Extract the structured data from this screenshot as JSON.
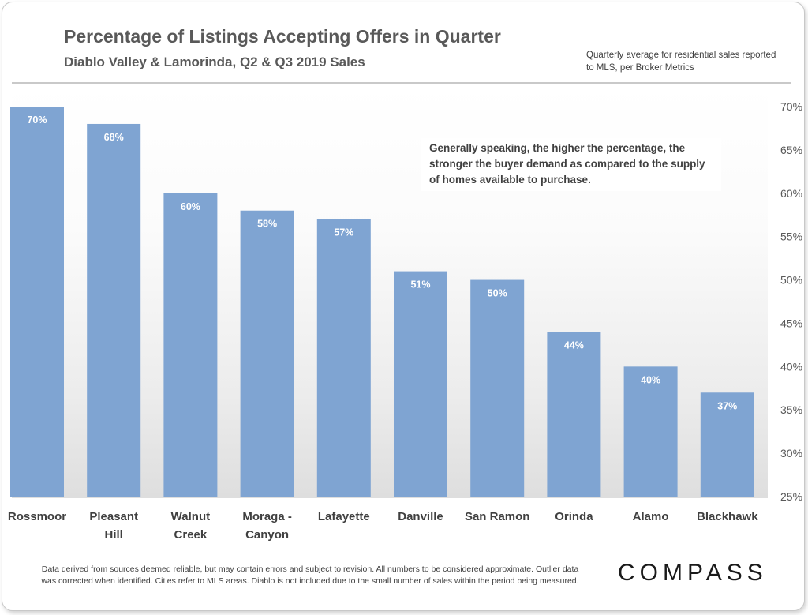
{
  "header": {
    "title": "Percentage of Listings Accepting Offers in Quarter",
    "subtitle": "Diablo Valley & Lamorinda,  Q2 & Q3 2019 Sales",
    "source_note": "Quarterly average for residential  sales reported to MLS, per Broker Metrics"
  },
  "annotation": "Generally speaking, the higher the percentage, the stronger the buyer demand as compared to the supply of homes available to purchase.",
  "footer": {
    "disclaimer": "Data derived from sources deemed reliable, but may contain errors and subject to revision. All numbers to be considered approximate. Outlier data was corrected when identified. Cities refer to MLS areas. Diablo is not included due to the small number of sales within the period being measured.",
    "logo": "COMPASS"
  },
  "colors": {
    "bar": "#7fa4d2",
    "bar_label": "#ffffff",
    "axis_text": "#595959",
    "category_text": "#404040"
  },
  "chart_data": {
    "type": "bar",
    "title": "Percentage of Listings Accepting Offers in Quarter",
    "subtitle": "Diablo Valley & Lamorinda,  Q2 & Q3 2019 Sales",
    "xlabel": "",
    "ylabel": "",
    "y_axis_side": "right",
    "grid": false,
    "categories": [
      [
        "Rossmoor"
      ],
      [
        "Pleasant",
        "Hill"
      ],
      [
        "Walnut",
        "Creek"
      ],
      [
        "Moraga -",
        "Canyon"
      ],
      [
        "Lafayette"
      ],
      [
        "Danville"
      ],
      [
        "San Ramon"
      ],
      [
        "Orinda"
      ],
      [
        "Alamo"
      ],
      [
        "Blackhawk"
      ]
    ],
    "values": [
      70,
      68,
      60,
      58,
      57,
      51,
      50,
      44,
      40,
      37
    ],
    "data_labels": [
      "70%",
      "68%",
      "60%",
      "58%",
      "57%",
      "51%",
      "50%",
      "44%",
      "40%",
      "37%"
    ],
    "ylim": [
      25,
      70
    ],
    "yticks": [
      25,
      30,
      35,
      40,
      45,
      50,
      55,
      60,
      65,
      70
    ],
    "ytick_labels": [
      "25%",
      "30%",
      "35%",
      "40%",
      "45%",
      "50%",
      "55%",
      "60%",
      "65%",
      "70%"
    ]
  }
}
